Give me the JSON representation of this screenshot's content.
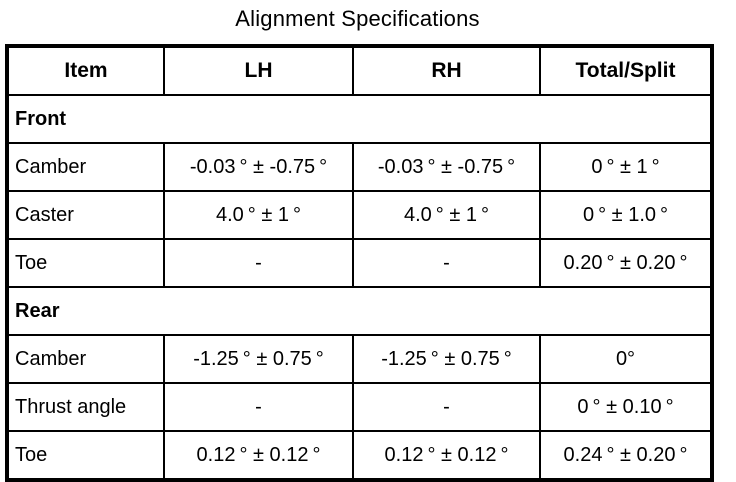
{
  "title": "Alignment Specifications",
  "colors": {
    "background": "#ffffff",
    "border": "#000000",
    "text": "#000000"
  },
  "table": {
    "columns": [
      "Item",
      "LH",
      "RH",
      "Total/Split"
    ],
    "sections": [
      {
        "name": "Front",
        "rows": [
          {
            "item": "Camber",
            "lh": "-0.03 ° ± -0.75 °",
            "rh": "-0.03 ° ± -0.75 °",
            "total": "0 ° ± 1 °"
          },
          {
            "item": "Caster",
            "lh": "4.0 ° ± 1 °",
            "rh": "4.0 ° ± 1 °",
            "total": "0 ° ± 1.0 °"
          },
          {
            "item": "Toe",
            "lh": "-",
            "rh": "-",
            "total": "0.20 ° ± 0.20 °"
          }
        ]
      },
      {
        "name": "Rear",
        "rows": [
          {
            "item": "Camber",
            "lh": "-1.25 ° ± 0.75 °",
            "rh": "-1.25 ° ± 0.75 °",
            "total": "0°"
          },
          {
            "item": "Thrust angle",
            "lh": "-",
            "rh": "-",
            "total": "0 ° ± 0.10 °"
          },
          {
            "item": "Toe",
            "lh": "0.12 ° ± 0.12 °",
            "rh": "0.12 ° ± 0.12 °",
            "total": "0.24 ° ± 0.20 °"
          }
        ]
      }
    ]
  }
}
